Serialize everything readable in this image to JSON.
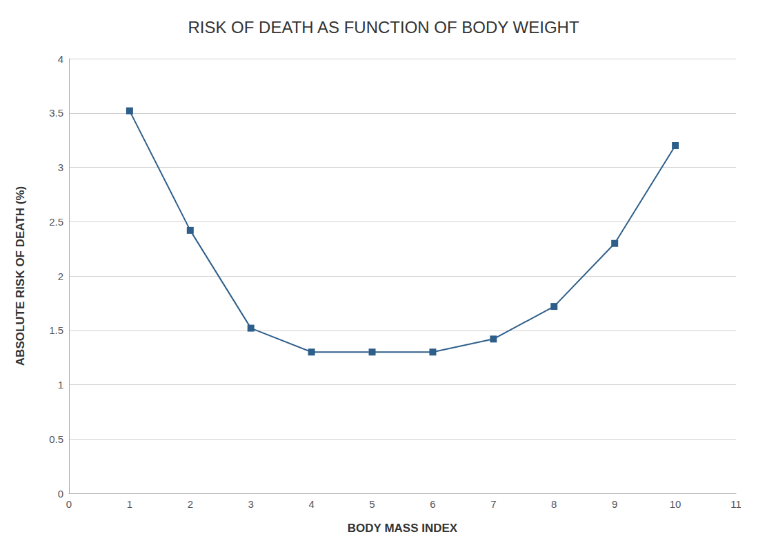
{
  "chart_data": {
    "type": "line",
    "title": "RISK OF DEATH AS FUNCTION OF BODY WEIGHT",
    "xlabel": "BODY MASS INDEX",
    "ylabel": "ABSOLUTE RISK OF DEATH (%)",
    "x": [
      1,
      2,
      3,
      4,
      5,
      6,
      7,
      8,
      9,
      10
    ],
    "values": [
      3.52,
      2.42,
      1.52,
      1.3,
      1.3,
      1.3,
      1.42,
      1.72,
      2.3,
      3.2
    ],
    "color": "#2e5f8a",
    "marker": "square",
    "xlim": [
      0,
      11
    ],
    "ylim": [
      0,
      4
    ],
    "xticks": [
      0,
      1,
      2,
      3,
      4,
      5,
      6,
      7,
      8,
      9,
      10,
      11
    ],
    "yticks": [
      0,
      0.5,
      1,
      1.5,
      2,
      2.5,
      3,
      3.5,
      4
    ],
    "grid": true
  }
}
